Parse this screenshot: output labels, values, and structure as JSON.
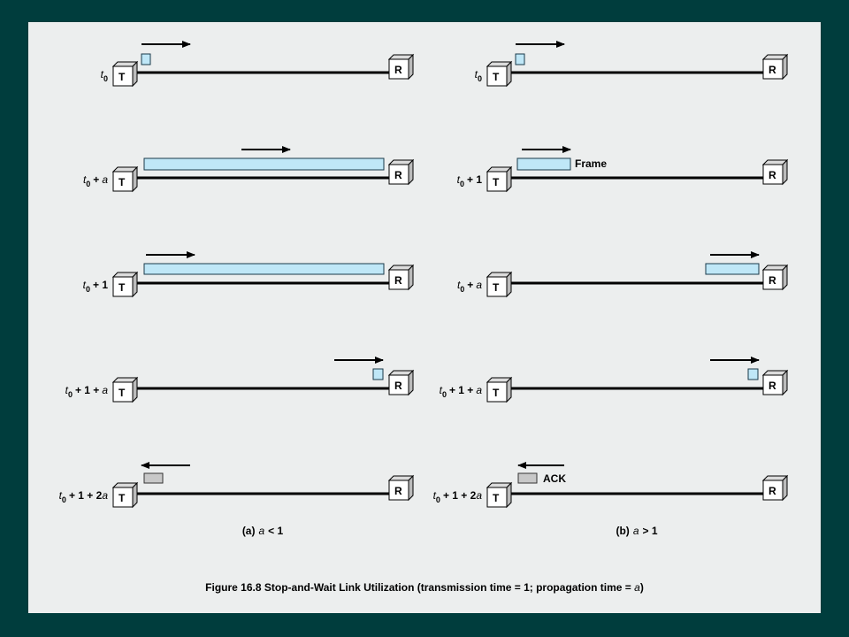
{
  "panels": [
    {
      "caption": {
        "tag": "(a)",
        "var": "a",
        "relation": "< 1"
      },
      "rows": [
        {
          "time": {
            "symbol": "t",
            "sub": "0"
          },
          "sender": "T",
          "receiver": "R"
        },
        {
          "time": {
            "symbol": "t",
            "sub": "0",
            "offset": "+",
            "var": "a"
          },
          "sender": "T",
          "receiver": "R"
        },
        {
          "time": {
            "symbol": "t",
            "sub": "0",
            "offset": "+ 1"
          },
          "sender": "T",
          "receiver": "R"
        },
        {
          "time": {
            "symbol": "t",
            "sub": "0",
            "offset": "+ 1 +",
            "var": "a"
          },
          "sender": "T",
          "receiver": "R"
        },
        {
          "time": {
            "symbol": "t",
            "sub": "0",
            "offset": "+ 1 + 2",
            "var": "a"
          },
          "sender": "T",
          "receiver": "R"
        }
      ]
    },
    {
      "caption": {
        "tag": "(b)",
        "var": "a",
        "relation": "> 1"
      },
      "rows": [
        {
          "time": {
            "symbol": "t",
            "sub": "0"
          },
          "sender": "T",
          "receiver": "R"
        },
        {
          "time": {
            "symbol": "t",
            "sub": "0",
            "offset": "+ 1"
          },
          "sender": "T",
          "receiver": "R",
          "note": "Frame"
        },
        {
          "time": {
            "symbol": "t",
            "sub": "0",
            "offset": "+",
            "var": "a"
          },
          "sender": "T",
          "receiver": "R"
        },
        {
          "time": {
            "symbol": "t",
            "sub": "0",
            "offset": "+ 1 +",
            "var": "a"
          },
          "sender": "T",
          "receiver": "R"
        },
        {
          "time": {
            "symbol": "t",
            "sub": "0",
            "offset": "+ 1 + 2",
            "var": "a"
          },
          "sender": "T",
          "receiver": "R",
          "note": "ACK"
        }
      ]
    }
  ],
  "figure": {
    "text": "Figure 16.8 Stop-and-Wait Link Utilization (transmission time = 1; propagation time = ",
    "var": "a",
    "close": ")"
  }
}
